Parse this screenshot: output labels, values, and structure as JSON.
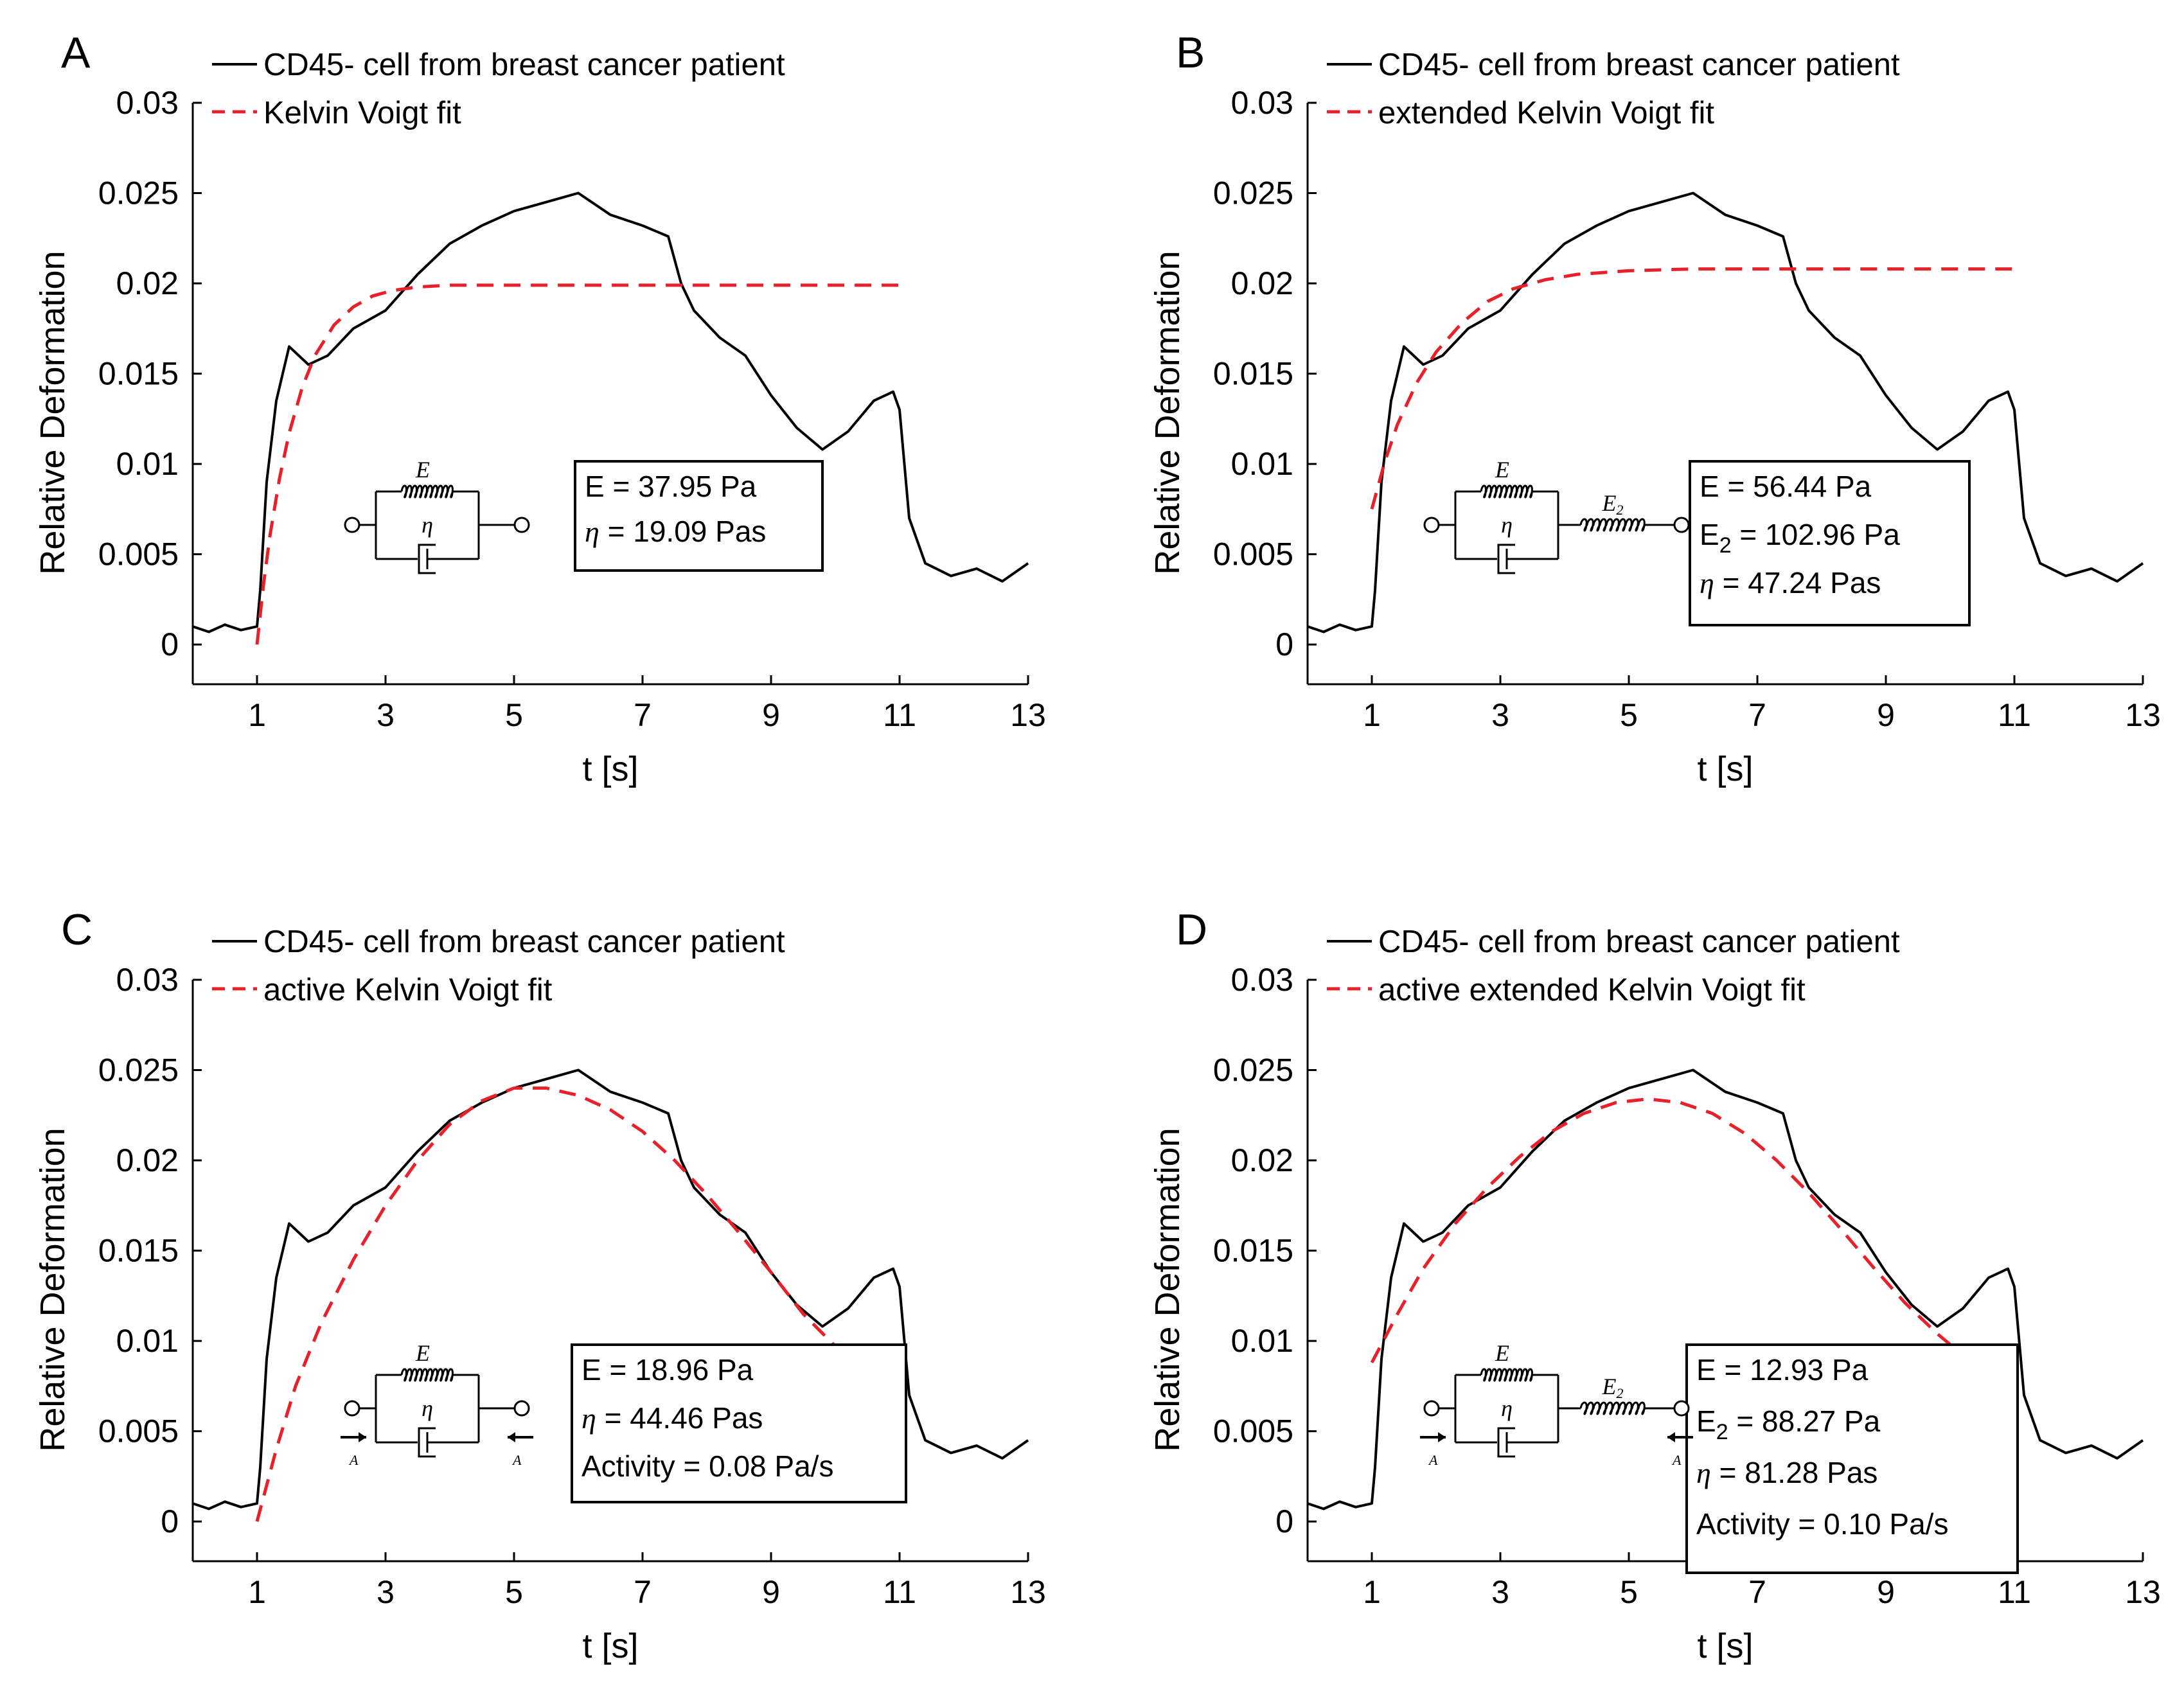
{
  "figure": {
    "palette": {
      "data": "#000000",
      "fit": "#e8202a"
    }
  },
  "chart_data": [
    {
      "panel": "A",
      "type": "line",
      "xlabel": "t [s]",
      "ylabel": "Relative Deformation",
      "xlim": [
        0,
        13
      ],
      "ylim": [
        -0.0022,
        0.03
      ],
      "xticks": [
        "1",
        "3",
        "5",
        "7",
        "9",
        "11",
        "13"
      ],
      "xtick_values": [
        1,
        3,
        5,
        7,
        9,
        11,
        13
      ],
      "yticks": [
        "0",
        "0.005",
        "0.01",
        "0.015",
        "0.02",
        "0.025",
        "0.03"
      ],
      "ytick_values": [
        0,
        0.005,
        0.01,
        0.015,
        0.02,
        0.025,
        0.03
      ],
      "legend": [
        "CD45- cell from breast cancer patient",
        "Kelvin Voigt fit"
      ],
      "series": [
        {
          "name": "CD45- cell from breast cancer patient",
          "style": "solid",
          "x": [
            0,
            0.25,
            0.5,
            0.75,
            1.0,
            1.05,
            1.15,
            1.3,
            1.5,
            1.8,
            2.1,
            2.5,
            3.0,
            3.5,
            4.0,
            4.5,
            5.0,
            5.5,
            6.0,
            6.5,
            7.0,
            7.4,
            7.6,
            7.8,
            8.2,
            8.6,
            9.0,
            9.4,
            9.8,
            10.2,
            10.6,
            10.9,
            11.0,
            11.15,
            11.4,
            11.8,
            12.2,
            12.6,
            13.0
          ],
          "y": [
            0.001,
            0.0007,
            0.0011,
            0.0008,
            0.001,
            0.003,
            0.009,
            0.0135,
            0.0165,
            0.0155,
            0.016,
            0.0175,
            0.0185,
            0.0205,
            0.0222,
            0.0232,
            0.024,
            0.0245,
            0.025,
            0.0238,
            0.0232,
            0.0226,
            0.02,
            0.0185,
            0.017,
            0.016,
            0.0138,
            0.012,
            0.0108,
            0.0118,
            0.0135,
            0.014,
            0.013,
            0.007,
            0.0045,
            0.0038,
            0.0042,
            0.0035,
            0.0045
          ]
        },
        {
          "name": "Kelvin Voigt fit",
          "style": "dashed",
          "x": [
            1.0,
            1.1,
            1.2,
            1.35,
            1.5,
            1.7,
            1.9,
            2.2,
            2.5,
            2.8,
            3.1,
            3.5,
            4.0,
            5.0,
            6.0,
            7.0,
            8.0,
            9.0,
            10.0,
            11.0
          ],
          "y": [
            0.0,
            0.0033,
            0.006,
            0.0092,
            0.0117,
            0.0142,
            0.016,
            0.0177,
            0.0187,
            0.0193,
            0.0196,
            0.0198,
            0.0199,
            0.0199,
            0.0199,
            0.0199,
            0.0199,
            0.0199,
            0.0199,
            0.0199
          ]
        }
      ],
      "params": [
        "E = 37.95 Pa",
        "η = 19.09 Pas"
      ],
      "diagram": {
        "symbols": [
          "E",
          "η"
        ],
        "kind": "kelvin-voigt"
      }
    },
    {
      "panel": "B",
      "type": "line",
      "xlabel": "t [s]",
      "ylabel": "Relative Deformation",
      "xlim": [
        0,
        13
      ],
      "ylim": [
        -0.0022,
        0.03
      ],
      "xticks": [
        "1",
        "3",
        "5",
        "7",
        "9",
        "11",
        "13"
      ],
      "xtick_values": [
        1,
        3,
        5,
        7,
        9,
        11,
        13
      ],
      "yticks": [
        "0",
        "0.005",
        "0.01",
        "0.015",
        "0.02",
        "0.025",
        "0.03"
      ],
      "ytick_values": [
        0,
        0.005,
        0.01,
        0.015,
        0.02,
        0.025,
        0.03
      ],
      "legend": [
        "CD45- cell from breast cancer patient",
        "extended Kelvin Voigt fit"
      ],
      "series": [
        {
          "name": "CD45- cell from breast cancer patient",
          "style": "solid",
          "x": [
            0,
            0.25,
            0.5,
            0.75,
            1.0,
            1.05,
            1.15,
            1.3,
            1.5,
            1.8,
            2.1,
            2.5,
            3.0,
            3.5,
            4.0,
            4.5,
            5.0,
            5.5,
            6.0,
            6.5,
            7.0,
            7.4,
            7.6,
            7.8,
            8.2,
            8.6,
            9.0,
            9.4,
            9.8,
            10.2,
            10.6,
            10.9,
            11.0,
            11.15,
            11.4,
            11.8,
            12.2,
            12.6,
            13.0
          ],
          "y": [
            0.001,
            0.0007,
            0.0011,
            0.0008,
            0.001,
            0.003,
            0.009,
            0.0135,
            0.0165,
            0.0155,
            0.016,
            0.0175,
            0.0185,
            0.0205,
            0.0222,
            0.0232,
            0.024,
            0.0245,
            0.025,
            0.0238,
            0.0232,
            0.0226,
            0.02,
            0.0185,
            0.017,
            0.016,
            0.0138,
            0.012,
            0.0108,
            0.0118,
            0.0135,
            0.014,
            0.013,
            0.007,
            0.0045,
            0.0038,
            0.0042,
            0.0035,
            0.0045
          ]
        },
        {
          "name": "extended Kelvin Voigt fit",
          "style": "dashed",
          "x": [
            1.0,
            1.2,
            1.4,
            1.7,
            2.0,
            2.4,
            2.8,
            3.2,
            3.7,
            4.2,
            5.0,
            6.0,
            7.0,
            8.0,
            9.0,
            10.0,
            11.0
          ],
          "y": [
            0.0075,
            0.0101,
            0.0122,
            0.0145,
            0.0162,
            0.0178,
            0.019,
            0.0197,
            0.0202,
            0.0205,
            0.0207,
            0.0208,
            0.0208,
            0.0208,
            0.0208,
            0.0208,
            0.0208
          ]
        }
      ],
      "params": [
        "E = 56.44 Pa",
        "E2 = 102.96 Pa",
        "η = 47.24 Pas"
      ],
      "diagram": {
        "symbols": [
          "E",
          "η",
          "E2"
        ],
        "kind": "extended-kelvin-voigt"
      }
    },
    {
      "panel": "C",
      "type": "line",
      "xlabel": "t [s]",
      "ylabel": "Relative Deformation",
      "xlim": [
        0,
        13
      ],
      "ylim": [
        -0.0022,
        0.03
      ],
      "xticks": [
        "1",
        "3",
        "5",
        "7",
        "9",
        "11",
        "13"
      ],
      "xtick_values": [
        1,
        3,
        5,
        7,
        9,
        11,
        13
      ],
      "yticks": [
        "0",
        "0.005",
        "0.01",
        "0.015",
        "0.02",
        "0.025",
        "0.03"
      ],
      "ytick_values": [
        0,
        0.005,
        0.01,
        0.015,
        0.02,
        0.025,
        0.03
      ],
      "legend": [
        "CD45- cell from breast cancer patient",
        "active Kelvin Voigt fit"
      ],
      "series": [
        {
          "name": "CD45- cell from breast cancer patient",
          "style": "solid",
          "x": [
            0,
            0.25,
            0.5,
            0.75,
            1.0,
            1.05,
            1.15,
            1.3,
            1.5,
            1.8,
            2.1,
            2.5,
            3.0,
            3.5,
            4.0,
            4.5,
            5.0,
            5.5,
            6.0,
            6.5,
            7.0,
            7.4,
            7.6,
            7.8,
            8.2,
            8.6,
            9.0,
            9.4,
            9.8,
            10.2,
            10.6,
            10.9,
            11.0,
            11.15,
            11.4,
            11.8,
            12.2,
            12.6,
            13.0
          ],
          "y": [
            0.001,
            0.0007,
            0.0011,
            0.0008,
            0.001,
            0.003,
            0.009,
            0.0135,
            0.0165,
            0.0155,
            0.016,
            0.0175,
            0.0185,
            0.0205,
            0.0222,
            0.0232,
            0.024,
            0.0245,
            0.025,
            0.0238,
            0.0232,
            0.0226,
            0.02,
            0.0185,
            0.017,
            0.016,
            0.0138,
            0.012,
            0.0108,
            0.0118,
            0.0135,
            0.014,
            0.013,
            0.007,
            0.0045,
            0.0038,
            0.0042,
            0.0035,
            0.0045
          ]
        },
        {
          "name": "active Kelvin Voigt fit",
          "style": "dashed",
          "x": [
            1.0,
            1.3,
            1.6,
            2.0,
            2.5,
            3.0,
            3.5,
            4.0,
            4.5,
            5.0,
            5.5,
            6.0,
            6.5,
            7.0,
            7.5,
            8.0,
            8.5,
            9.0,
            9.5,
            10.0
          ],
          "y": [
            0.0,
            0.004,
            0.0075,
            0.011,
            0.0145,
            0.0175,
            0.02,
            0.022,
            0.0233,
            0.024,
            0.024,
            0.0236,
            0.0228,
            0.0216,
            0.02,
            0.0181,
            0.016,
            0.0138,
            0.0115,
            0.0097
          ]
        }
      ],
      "params": [
        "E = 18.96 Pa",
        "η = 44.46 Pas",
        "Activity = 0.08 Pa/s"
      ],
      "diagram": {
        "symbols": [
          "E",
          "η",
          "A",
          "A"
        ],
        "kind": "active-kelvin-voigt"
      }
    },
    {
      "panel": "D",
      "type": "line",
      "xlabel": "t [s]",
      "ylabel": "Relative Deformation",
      "xlim": [
        0,
        13
      ],
      "ylim": [
        -0.0022,
        0.03
      ],
      "xticks": [
        "1",
        "3",
        "5",
        "7",
        "9",
        "11",
        "13"
      ],
      "xtick_values": [
        1,
        3,
        5,
        7,
        9,
        11,
        13
      ],
      "yticks": [
        "0",
        "0.005",
        "0.01",
        "0.015",
        "0.02",
        "0.025",
        "0.03"
      ],
      "ytick_values": [
        0,
        0.005,
        0.01,
        0.015,
        0.02,
        0.025,
        0.03
      ],
      "legend": [
        "CD45- cell from breast cancer patient",
        "active extended Kelvin Voigt fit"
      ],
      "series": [
        {
          "name": "CD45- cell from breast cancer patient",
          "style": "solid",
          "x": [
            0,
            0.25,
            0.5,
            0.75,
            1.0,
            1.05,
            1.15,
            1.3,
            1.5,
            1.8,
            2.1,
            2.5,
            3.0,
            3.5,
            4.0,
            4.5,
            5.0,
            5.5,
            6.0,
            6.5,
            7.0,
            7.4,
            7.6,
            7.8,
            8.2,
            8.6,
            9.0,
            9.4,
            9.8,
            10.2,
            10.6,
            10.9,
            11.0,
            11.15,
            11.4,
            11.8,
            12.2,
            12.6,
            13.0
          ],
          "y": [
            0.001,
            0.0007,
            0.0011,
            0.0008,
            0.001,
            0.003,
            0.009,
            0.0135,
            0.0165,
            0.0155,
            0.016,
            0.0175,
            0.0185,
            0.0205,
            0.0222,
            0.0232,
            0.024,
            0.0245,
            0.025,
            0.0238,
            0.0232,
            0.0226,
            0.02,
            0.0185,
            0.017,
            0.016,
            0.0138,
            0.012,
            0.0108,
            0.0118,
            0.0135,
            0.014,
            0.013,
            0.007,
            0.0045,
            0.0038,
            0.0042,
            0.0035,
            0.0045
          ]
        },
        {
          "name": "active extended Kelvin Voigt fit",
          "style": "dashed",
          "x": [
            1.0,
            1.4,
            1.8,
            2.3,
            2.8,
            3.3,
            3.8,
            4.3,
            4.8,
            5.3,
            5.8,
            6.3,
            6.8,
            7.3,
            7.8,
            8.3,
            8.8,
            9.3,
            9.8,
            10.0
          ],
          "y": [
            0.0088,
            0.0115,
            0.014,
            0.0165,
            0.0185,
            0.0202,
            0.0216,
            0.0226,
            0.0232,
            0.0234,
            0.0232,
            0.0226,
            0.0215,
            0.02,
            0.0182,
            0.0162,
            0.0141,
            0.0121,
            0.0104,
            0.0098
          ]
        }
      ],
      "params": [
        "E = 12.93 Pa",
        "E2 = 88.27 Pa",
        "η = 81.28 Pas",
        "Activity = 0.10 Pa/s"
      ],
      "diagram": {
        "symbols": [
          "E",
          "η",
          "E2",
          "A",
          "A"
        ],
        "kind": "active-extended-kelvin-voigt"
      }
    }
  ]
}
